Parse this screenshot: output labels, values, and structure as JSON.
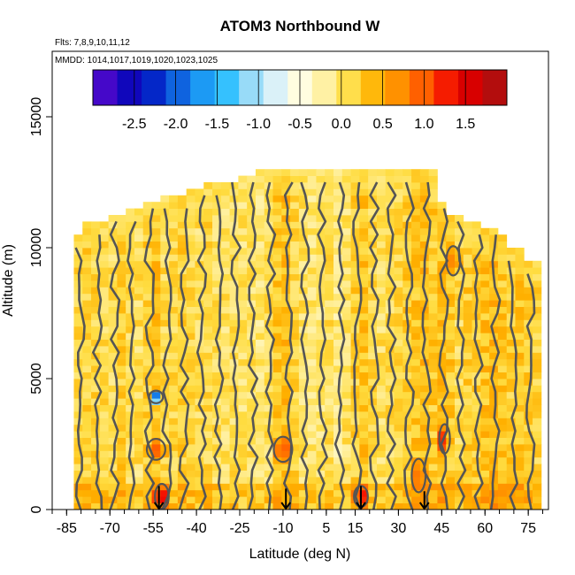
{
  "chart_data": {
    "type": "heatmap",
    "title": "ATOM3 Northbound W",
    "subtitle_flights": "Flts: 7,8,9,10,11,12",
    "subtitle_dates": "MMDD: 1014,1017,1019,1020,1023,1025",
    "xlabel": "Latitude (deg N)",
    "ylabel": "Altitude (m)",
    "xlim": [
      -90,
      82
    ],
    "ylim": [
      0,
      17500
    ],
    "x_ticks": [
      -85,
      -70,
      -55,
      -40,
      -25,
      -10,
      5,
      15,
      30,
      45,
      60,
      75
    ],
    "x_tick_labels": [
      "-85",
      "-70",
      "-55",
      "-40",
      "-25",
      "-10",
      "5",
      "15",
      "30",
      "45",
      "60",
      "75"
    ],
    "x_minor_step": 5,
    "y_ticks": [
      0,
      5000,
      10000,
      15000
    ],
    "y_tick_labels": [
      "0",
      "5000",
      "10000",
      "15000"
    ],
    "colorbar": {
      "min": -3.0,
      "max": 2.0,
      "tick_values": [
        -2.5,
        -2.0,
        -1.5,
        -1.0,
        -0.5,
        0.0,
        0.5,
        1.0,
        1.5
      ],
      "tick_labels": [
        "-2.5",
        "-2.0",
        "-1.5",
        "-1.0",
        "-0.5",
        "0.0",
        "0.5",
        "1.0",
        "1.5"
      ],
      "colors": [
        "#6a0fd8",
        "#1b00b8",
        "#0010c0",
        "#0a50d8",
        "#1a90f0",
        "#22bcff",
        "#8fd8f8",
        "#d8f0fa",
        "#fffde0",
        "#fff0a0",
        "#ffdc40",
        "#ffb000",
        "#ff8800",
        "#ff5000",
        "#f00000",
        "#c80000",
        "#a01818"
      ]
    },
    "w_columns": [
      {
        "lat": -81,
        "top": 10400,
        "mean": 0.12
      },
      {
        "lat": -78,
        "top": 10800,
        "mean": 0.18
      },
      {
        "lat": -75,
        "top": 10800,
        "mean": 0.15
      },
      {
        "lat": -72,
        "top": 11000,
        "mean": 0.1
      },
      {
        "lat": -69,
        "top": 11200,
        "mean": 0.06
      },
      {
        "lat": -66,
        "top": 11200,
        "mean": 0.2
      },
      {
        "lat": -63,
        "top": 11400,
        "mean": 0.08
      },
      {
        "lat": -60,
        "top": 11400,
        "mean": 0.05
      },
      {
        "lat": -57,
        "top": 11600,
        "mean": 0.22
      },
      {
        "lat": -54,
        "top": 11700,
        "mean": 0.3
      },
      {
        "lat": -51,
        "top": 11800,
        "mean": 0.1
      },
      {
        "lat": -48,
        "top": 11800,
        "mean": 0.12
      },
      {
        "lat": -45,
        "top": 11900,
        "mean": 0.18
      },
      {
        "lat": -42,
        "top": 12100,
        "mean": 0.1
      },
      {
        "lat": -39,
        "top": 12100,
        "mean": 0.05
      },
      {
        "lat": -36,
        "top": 12300,
        "mean": 0.14
      },
      {
        "lat": -33,
        "top": 12300,
        "mean": 0.08
      },
      {
        "lat": -30,
        "top": 12500,
        "mean": 0.02
      },
      {
        "lat": -27,
        "top": 12500,
        "mean": 0.06
      },
      {
        "lat": -24,
        "top": 12700,
        "mean": 0.0
      },
      {
        "lat": -21,
        "top": 12700,
        "mean": 0.04
      },
      {
        "lat": -18,
        "top": 12800,
        "mean": -0.05
      },
      {
        "lat": -15,
        "top": 12800,
        "mean": 0.05
      },
      {
        "lat": -12,
        "top": 12800,
        "mean": 0.25
      },
      {
        "lat": -9,
        "top": 12800,
        "mean": 0.35
      },
      {
        "lat": -6,
        "top": 12800,
        "mean": 0.15
      },
      {
        "lat": -3,
        "top": 12800,
        "mean": 0.02
      },
      {
        "lat": 0,
        "top": 12800,
        "mean": -0.05
      },
      {
        "lat": 3,
        "top": 12800,
        "mean": -0.02
      },
      {
        "lat": 6,
        "top": 12800,
        "mean": 0.05
      },
      {
        "lat": 9,
        "top": 12800,
        "mean": -0.1
      },
      {
        "lat": 12,
        "top": 12800,
        "mean": 0.02
      },
      {
        "lat": 15,
        "top": 12800,
        "mean": 0.18
      },
      {
        "lat": 18,
        "top": 12800,
        "mean": 0.3
      },
      {
        "lat": 21,
        "top": 12800,
        "mean": 0.1
      },
      {
        "lat": 24,
        "top": 12800,
        "mean": 0.04
      },
      {
        "lat": 27,
        "top": 12800,
        "mean": 0.08
      },
      {
        "lat": 30,
        "top": 12800,
        "mean": 0.12
      },
      {
        "lat": 33,
        "top": 12800,
        "mean": 0.2
      },
      {
        "lat": 36,
        "top": 12800,
        "mean": 0.28
      },
      {
        "lat": 39,
        "top": 12800,
        "mean": 0.38
      },
      {
        "lat": 42,
        "top": 12800,
        "mean": 0.22
      },
      {
        "lat": 45,
        "top": 11600,
        "mean": 0.32
      },
      {
        "lat": 48,
        "top": 11200,
        "mean": 0.25
      },
      {
        "lat": 51,
        "top": 11200,
        "mean": 0.08
      },
      {
        "lat": 54,
        "top": 11000,
        "mean": 0.22
      },
      {
        "lat": 57,
        "top": 10800,
        "mean": 0.18
      },
      {
        "lat": 60,
        "top": 10600,
        "mean": 0.3
      },
      {
        "lat": 63,
        "top": 10600,
        "mean": 0.35
      },
      {
        "lat": 66,
        "top": 10400,
        "mean": 0.25
      },
      {
        "lat": 69,
        "top": 9800,
        "mean": 0.2
      },
      {
        "lat": 72,
        "top": 9800,
        "mean": 0.28
      },
      {
        "lat": 75,
        "top": 9400,
        "mean": 0.22
      },
      {
        "lat": 78,
        "top": 9400,
        "mean": 0.15
      }
    ],
    "anomalies": [
      {
        "lat": -54,
        "alt": 4300,
        "w": -2.0,
        "dlat": 3,
        "dalt": 300
      },
      {
        "lat": -54,
        "alt": 2300,
        "w": 1.0,
        "dlat": 4,
        "dalt": 500
      },
      {
        "lat": -52,
        "alt": 500,
        "w": 1.5,
        "dlat": 3,
        "dalt": 600
      },
      {
        "lat": -10,
        "alt": 2300,
        "w": 1.0,
        "dlat": 4,
        "dalt": 600
      },
      {
        "lat": 17,
        "alt": 500,
        "w": 1.4,
        "dlat": 3,
        "dalt": 500
      },
      {
        "lat": 37,
        "alt": 1300,
        "w": 0.9,
        "dlat": 3,
        "dalt": 800
      },
      {
        "lat": 46,
        "alt": 2700,
        "w": 1.5,
        "dlat": 2,
        "dalt": 700
      },
      {
        "lat": 49,
        "alt": 9500,
        "w": 0.8,
        "dlat": 3,
        "dalt": 700
      }
    ],
    "descent_arrows": [
      {
        "lat": -53,
        "alt_top": 900,
        "alt_bottom": 0
      },
      {
        "lat": -9,
        "alt_top": 800,
        "alt_bottom": 0
      },
      {
        "lat": 17,
        "alt_top": 900,
        "alt_bottom": 0
      },
      {
        "lat": 39,
        "alt_top": 700,
        "alt_bottom": 0
      }
    ]
  }
}
